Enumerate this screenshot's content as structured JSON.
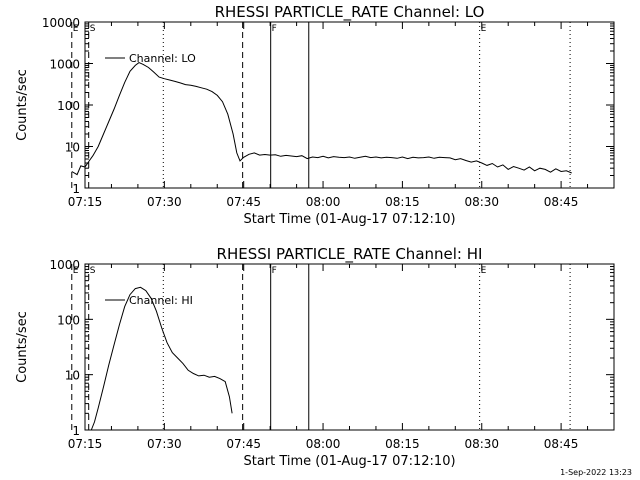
{
  "footer_timestamp": "1-Sep-2022 13:23",
  "chart_data": [
    {
      "type": "line",
      "title": "RHESSI PARTICLE_RATE Channel: LO",
      "xlabel": "Start Time (01-Aug-17 07:12:10)",
      "ylabel": "Counts/sec",
      "yscale": "log",
      "xlim_minutes": [
        0,
        100
      ],
      "ylim": [
        1,
        10000
      ],
      "x_ticks": [
        {
          "minute": 0,
          "label": "07:15"
        },
        {
          "minute": 15,
          "label": "07:30"
        },
        {
          "minute": 30,
          "label": "07:45"
        },
        {
          "minute": 45,
          "label": "08:00"
        },
        {
          "minute": 60,
          "label": "08:15"
        },
        {
          "minute": 75,
          "label": "08:30"
        },
        {
          "minute": 90,
          "label": "08:45"
        }
      ],
      "y_ticks": [
        {
          "value": 1,
          "label": "1"
        },
        {
          "value": 10,
          "label": "10"
        },
        {
          "value": 100,
          "label": "100"
        },
        {
          "value": 1000,
          "label": "1000"
        },
        {
          "value": 10000,
          "label": "10000"
        }
      ],
      "legend": {
        "label": "Channel: LO",
        "position": "top-left"
      },
      "markers": [
        {
          "minute": -2.5,
          "style": "dashed",
          "label": "E"
        },
        {
          "minute": 0.7,
          "style": "dashed",
          "label": "S"
        },
        {
          "minute": 14.8,
          "style": "dotted",
          "label": ""
        },
        {
          "minute": 29.8,
          "style": "dashed",
          "label": ""
        },
        {
          "minute": 35.1,
          "style": "solid",
          "label": "F"
        },
        {
          "minute": 42.3,
          "style": "solid",
          "label": ""
        },
        {
          "minute": 74.6,
          "style": "dotted",
          "label": "E"
        },
        {
          "minute": 91.7,
          "style": "dotted",
          "label": ""
        }
      ],
      "series": [
        {
          "name": "Channel: LO",
          "minutes": [
            -2.5,
            -1.5,
            -0.8,
            0,
            0.8,
            1.5,
            2.5,
            3.5,
            4.5,
            5.5,
            6.5,
            7.5,
            8.5,
            9.5,
            10.2,
            11,
            12,
            13,
            14,
            15,
            16,
            17,
            18,
            19,
            20,
            21,
            22,
            23,
            24,
            25,
            26,
            27,
            28,
            28.7,
            29.3,
            30,
            31,
            32,
            33,
            34,
            35,
            36,
            37,
            38,
            39,
            40,
            41,
            42,
            43,
            44,
            45,
            46,
            47,
            48,
            49,
            50,
            51,
            52,
            53,
            54,
            55,
            56,
            57,
            58,
            59,
            60,
            61,
            62,
            63,
            64,
            65,
            66,
            67,
            68,
            69,
            70,
            71,
            72,
            73,
            74,
            75,
            76,
            77,
            78,
            79,
            80,
            81,
            82,
            83,
            84,
            85,
            86,
            87,
            88,
            89,
            90,
            91,
            92
          ],
          "values": [
            2.5,
            2.1,
            3.4,
            3.2,
            4.5,
            6,
            10,
            20,
            40,
            80,
            170,
            350,
            650,
            900,
            1050,
            950,
            800,
            620,
            470,
            430,
            400,
            370,
            340,
            310,
            300,
            280,
            260,
            240,
            210,
            170,
            120,
            60,
            20,
            7,
            4.5,
            5.5,
            6.5,
            7,
            6.2,
            6.4,
            6.2,
            6.3,
            5.8,
            6.1,
            5.9,
            5.7,
            6,
            5.1,
            5.6,
            5.4,
            5.8,
            5.3,
            5.7,
            5.5,
            5.4,
            5.6,
            5.2,
            5.5,
            5.8,
            5.4,
            5.6,
            5.3,
            5.5,
            5.4,
            5.2,
            5.6,
            5.1,
            5.5,
            5.3,
            5.4,
            5.6,
            5.2,
            5.5,
            5.4,
            5.3,
            4.8,
            5.1,
            4.6,
            4.2,
            4.5,
            4,
            3.5,
            3.9,
            3.2,
            3.6,
            2.8,
            3.3,
            3,
            2.7,
            3.2,
            2.6,
            3,
            2.8,
            2.4,
            2.9,
            2.5,
            2.6,
            2.3
          ]
        }
      ]
    },
    {
      "type": "line",
      "title": "RHESSI PARTICLE_RATE Channel: HI",
      "xlabel": "Start Time (01-Aug-17 07:12:10)",
      "ylabel": "Counts/sec",
      "yscale": "log",
      "xlim_minutes": [
        0,
        100
      ],
      "ylim": [
        1,
        1000
      ],
      "x_ticks": [
        {
          "minute": 0,
          "label": "07:15"
        },
        {
          "minute": 15,
          "label": "07:30"
        },
        {
          "minute": 30,
          "label": "07:45"
        },
        {
          "minute": 45,
          "label": "08:00"
        },
        {
          "minute": 60,
          "label": "08:15"
        },
        {
          "minute": 75,
          "label": "08:30"
        },
        {
          "minute": 90,
          "label": "08:45"
        }
      ],
      "y_ticks": [
        {
          "value": 1,
          "label": "1"
        },
        {
          "value": 10,
          "label": "10"
        },
        {
          "value": 100,
          "label": "100"
        },
        {
          "value": 1000,
          "label": "1000"
        }
      ],
      "legend": {
        "label": "Channel: HI",
        "position": "top-left"
      },
      "markers": [
        {
          "minute": -2.5,
          "style": "dashed",
          "label": "E"
        },
        {
          "minute": 0.7,
          "style": "dashed",
          "label": "S"
        },
        {
          "minute": 14.8,
          "style": "dotted",
          "label": ""
        },
        {
          "minute": 29.8,
          "style": "dashed",
          "label": ""
        },
        {
          "minute": 35.1,
          "style": "solid",
          "label": "F"
        },
        {
          "minute": 42.3,
          "style": "solid",
          "label": ""
        },
        {
          "minute": 74.6,
          "style": "dotted",
          "label": "E"
        },
        {
          "minute": 91.7,
          "style": "dotted",
          "label": ""
        }
      ],
      "series": [
        {
          "name": "Channel: HI",
          "minutes": [
            1.2,
            1.8,
            2.5,
            3.5,
            4.5,
            5.5,
            6.5,
            7.5,
            8.5,
            9.5,
            10.5,
            11.5,
            12.5,
            13.5,
            14.5,
            15.5,
            16.5,
            17.5,
            18.5,
            19.5,
            20.5,
            21.5,
            22.5,
            23.5,
            24.5,
            25.5,
            26.5,
            27.3,
            27.8
          ],
          "values": [
            1,
            1.4,
            2.5,
            6,
            15,
            35,
            80,
            170,
            280,
            360,
            380,
            330,
            240,
            140,
            70,
            38,
            25,
            20,
            16,
            12,
            10.5,
            9.5,
            9.8,
            9,
            9.3,
            8.5,
            7.5,
            4,
            2
          ]
        }
      ]
    }
  ]
}
